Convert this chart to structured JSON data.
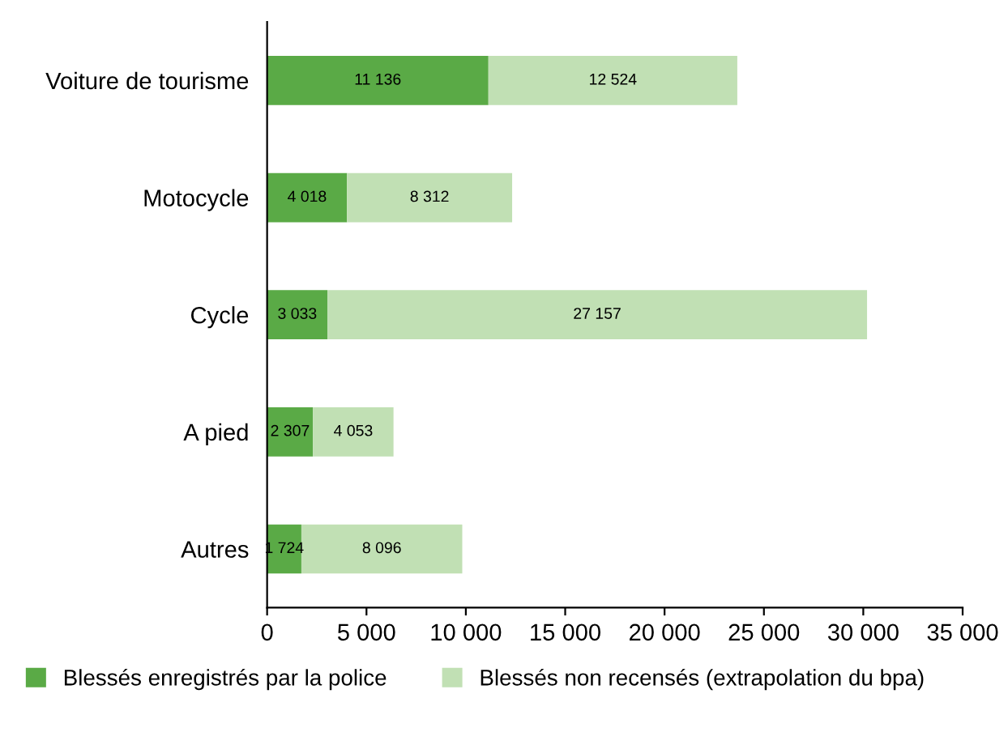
{
  "chart_data": {
    "type": "bar",
    "orientation": "horizontal",
    "stacked": true,
    "categories": [
      "Voiture de tourisme",
      "Motocycle",
      "Cycle",
      "A pied",
      "Autres"
    ],
    "series": [
      {
        "name": "Blessés enregistrés par la police",
        "color": "#5aaa46",
        "values": [
          11136,
          4018,
          3033,
          2307,
          1724
        ],
        "value_labels": [
          "11 136",
          "4 018",
          "3 033",
          "2 307",
          "1 724"
        ]
      },
      {
        "name": "Blessés non recensés (extrapolation du bpa)",
        "color": "#c1e0b4",
        "values": [
          12524,
          8312,
          27157,
          4053,
          8096
        ],
        "value_labels": [
          "12 524",
          "8 312",
          "27 157",
          "4 053",
          "8 096"
        ]
      }
    ],
    "xlim": [
      0,
      35000
    ],
    "xticks": [
      0,
      {
        "value": 5000,
        "label": "5 000"
      },
      {
        "value": 10000,
        "label": "10 000"
      },
      {
        "value": 15000,
        "label": "15 000"
      },
      {
        "value": 20000,
        "label": "20 000"
      },
      {
        "value": 25000,
        "label": "25 000"
      },
      {
        "value": 30000,
        "label": "30 000"
      },
      {
        "value": 35000,
        "label": "35 000"
      }
    ],
    "grid": false,
    "legend": "bottom"
  }
}
